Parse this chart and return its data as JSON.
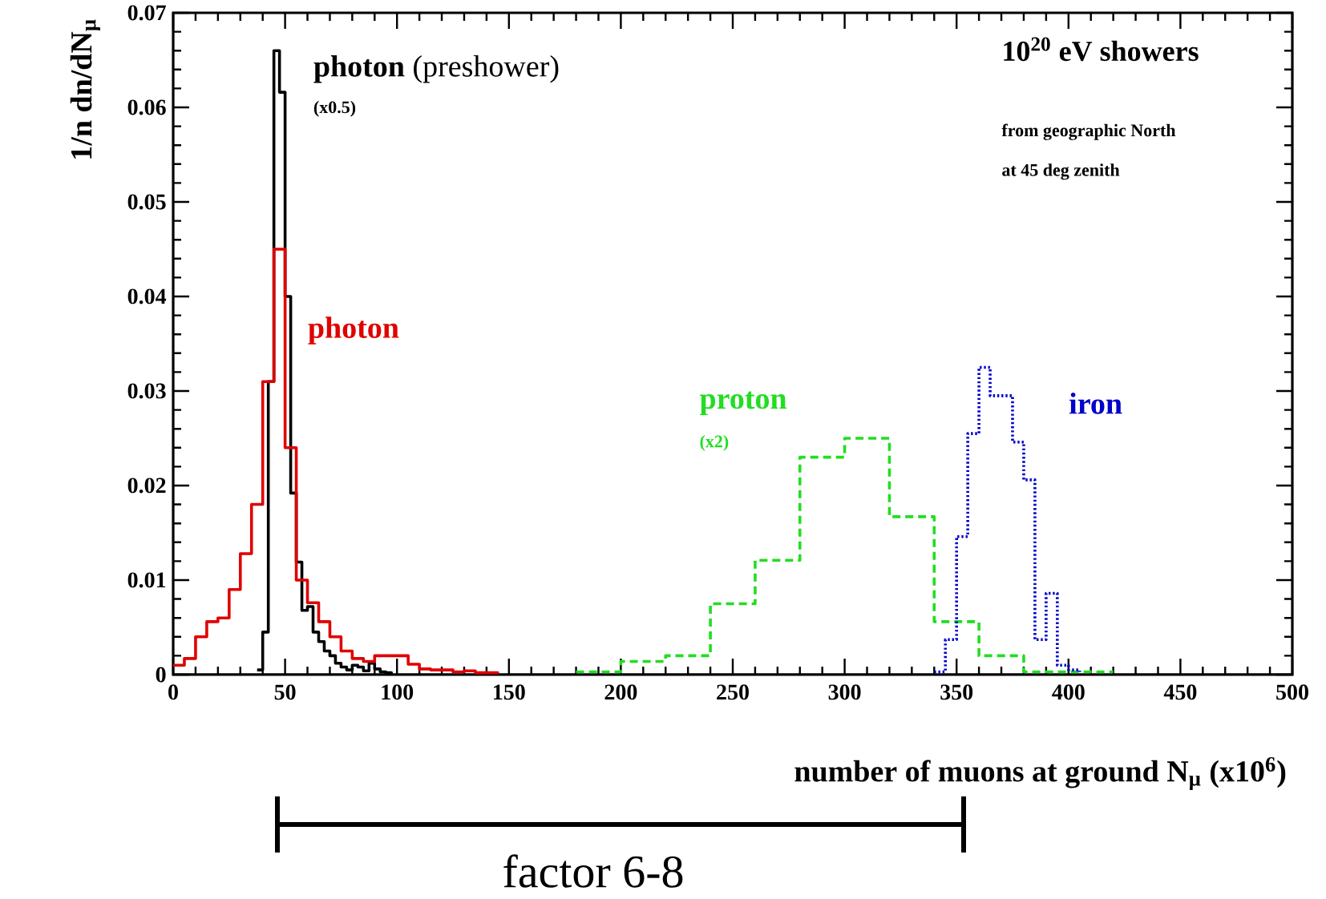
{
  "chart_data": {
    "type": "step",
    "xlabel": "number of muons at ground N$_{μ}$ (x10$^{6}$)",
    "ylabel": "1/n dn/dN$_{μ}$",
    "xlim": [
      0,
      500
    ],
    "ylim": [
      0,
      0.07
    ],
    "xticks": [
      0,
      50,
      100,
      150,
      200,
      250,
      300,
      350,
      400,
      450,
      500
    ],
    "yticks": [
      0,
      0.01,
      0.02,
      0.03,
      0.04,
      0.05,
      0.06,
      0.07
    ],
    "series": [
      {
        "name": "**photon** (preshower)",
        "color": "#000000",
        "line_style": "solid",
        "x": [
          37.5,
          40,
          42.5,
          45,
          47.5,
          50,
          52.5,
          55,
          57.5,
          60,
          62.5,
          65,
          67.5,
          70,
          72.5,
          75,
          77.5,
          80,
          82.5,
          85,
          87.5,
          90,
          92.5,
          95,
          97.5
        ],
        "values": [
          0.0005,
          0.0045,
          0.031,
          0.066,
          0.0616,
          0.04,
          0.0192,
          0.0119,
          0.0068,
          0.0072,
          0.0045,
          0.0035,
          0.0025,
          0.002,
          0.0012,
          0.0008,
          0.0005,
          0.001,
          0.0008,
          0.0004,
          0.0012,
          0.0006,
          0.0003,
          0.0002,
          0.0001
        ]
      },
      {
        "name": "photon",
        "color": "#e00000",
        "line_style": "solid",
        "x": [
          0,
          5,
          10,
          15,
          20,
          25,
          30,
          35,
          40,
          45,
          50,
          55,
          60,
          65,
          70,
          75,
          80,
          85,
          90,
          95,
          100,
          105,
          110,
          115,
          120,
          125,
          130,
          135,
          140,
          145
        ],
        "values": [
          0.001,
          0.0017,
          0.004,
          0.0056,
          0.006,
          0.009,
          0.0128,
          0.018,
          0.031,
          0.045,
          0.024,
          0.01,
          0.0076,
          0.0056,
          0.004,
          0.0025,
          0.0017,
          0.0014,
          0.002,
          0.002,
          0.002,
          0.0011,
          0.0006,
          0.0005,
          0.0005,
          0.0003,
          0.0004,
          0.0002,
          0.0002,
          0.0001
        ]
      },
      {
        "name": "proton",
        "color": "#22dd22",
        "line_style": "dashed",
        "x": [
          180,
          200,
          220,
          240,
          260,
          280,
          300,
          320,
          340,
          360,
          380,
          400,
          420
        ],
        "values": [
          0.0003,
          0.0014,
          0.002,
          0.0075,
          0.0121,
          0.023,
          0.025,
          0.0167,
          0.0056,
          0.002,
          0.0003,
          0.0003,
          0.0003
        ]
      },
      {
        "name": "iron",
        "color": "#0000cc",
        "line_style": "dotted",
        "x": [
          340,
          345,
          350,
          355,
          360,
          365,
          370,
          375,
          380,
          385,
          390,
          395,
          400,
          405
        ],
        "values": [
          0.0003,
          0.0037,
          0.0146,
          0.0255,
          0.0325,
          0.0295,
          0.0295,
          0.0246,
          0.0206,
          0.0037,
          0.0086,
          0.001,
          0.0005,
          0.0003
        ]
      }
    ],
    "annotations": [
      "(x0.5)",
      "(x2)",
      "10$^{20}$ eV showers",
      "from geographic North",
      "at 45 deg zenith",
      "factor 6-8"
    ]
  }
}
